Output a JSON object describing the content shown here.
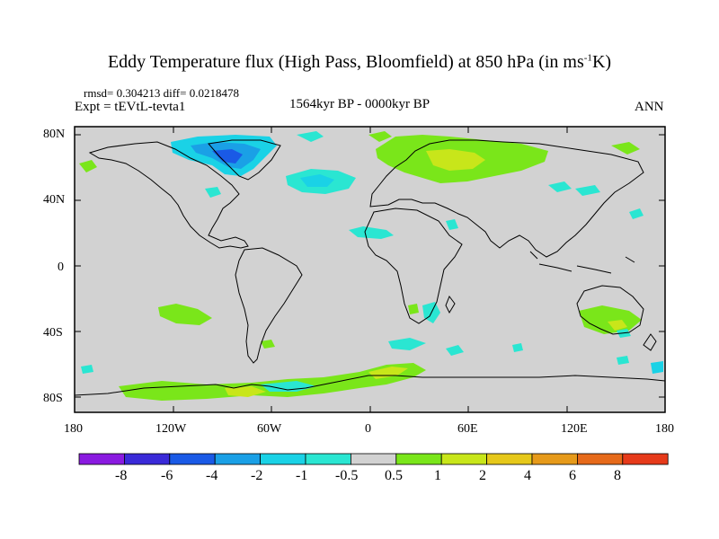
{
  "title_parts": [
    "Eddy Temperature flux (High Pass, Bloomfield) at 850 hPa (in ms",
    "-1",
    "K)"
  ],
  "stats": "rmsd= 0.304213 diff= 0.0218478",
  "experiment": "Expt = tEVtL-tevta1",
  "period": "1564kyr BP - 0000kyr BP",
  "season": "ANN",
  "lat_ticks": [
    "80N",
    "40N",
    "0",
    "40S",
    "80S"
  ],
  "lon_ticks": [
    "180",
    "120W",
    "60W",
    "0",
    "60E",
    "120E",
    "180"
  ],
  "colorbar": {
    "labels": [
      "-8",
      "-6",
      "-4",
      "-2",
      "-1",
      "-0.5",
      "0.5",
      "1",
      "2",
      "4",
      "6",
      "8"
    ],
    "colors": [
      "#8a1ae0",
      "#3a2ad8",
      "#1a5ae6",
      "#1aa0e6",
      "#1ad2e6",
      "#2ae6d2",
      "#d2d2d2",
      "#7ae61a",
      "#c8e61a",
      "#e6c81a",
      "#e69a1a",
      "#e66a1a",
      "#e63a1a"
    ]
  },
  "map_colors": {
    "background": "#d2d2d2",
    "coast": "#000000"
  }
}
